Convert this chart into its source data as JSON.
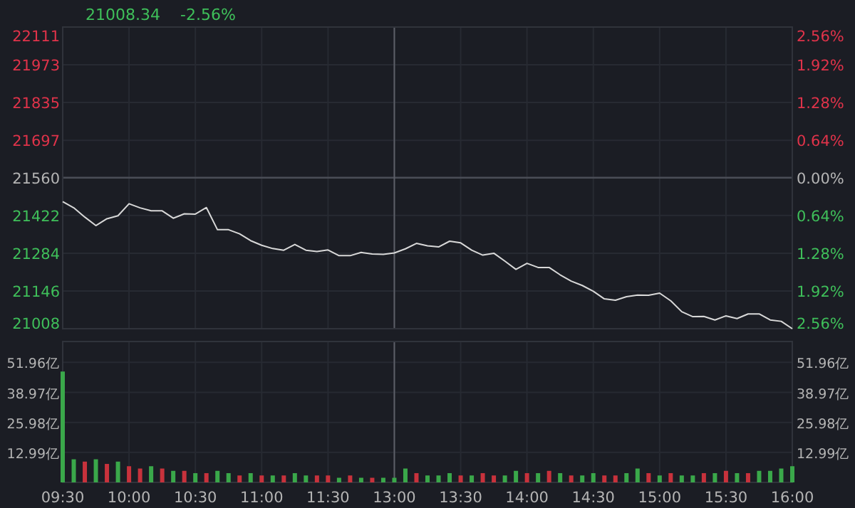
{
  "chart_data": [
    {
      "type": "line",
      "annotations": [
        "21008.34",
        "-2.56%"
      ],
      "color": "#d8d8d8",
      "categories": [
        "09:30",
        null,
        null,
        null,
        null,
        null,
        "10:00",
        null,
        null,
        null,
        null,
        null,
        "10:30",
        null,
        null,
        null,
        null,
        null,
        "11:00",
        null,
        null,
        null,
        null,
        null,
        "11:30",
        null,
        null,
        null,
        null,
        null,
        "13:00",
        null,
        null,
        null,
        null,
        null,
        "13:30",
        null,
        null,
        null,
        null,
        null,
        "14:00",
        null,
        null,
        null,
        null,
        null,
        "14:30",
        null,
        null,
        null,
        null,
        null,
        "15:00",
        null,
        null,
        null,
        null,
        null,
        "15:30",
        null,
        null,
        null,
        null,
        null,
        "16:00"
      ],
      "values": [
        21473,
        21450,
        21416,
        21385,
        21410,
        21421,
        21465,
        21450,
        21439,
        21439,
        21412,
        21428,
        21427,
        21451,
        21370,
        21370,
        21355,
        21330,
        21313,
        21301,
        21295,
        21316,
        21295,
        21290,
        21296,
        21275,
        21275,
        21287,
        21281,
        21280,
        21285,
        21300,
        21320,
        21311,
        21307,
        21328,
        21322,
        21295,
        21277,
        21284,
        21255,
        21225,
        21247,
        21232,
        21232,
        21205,
        21182,
        21166,
        21145,
        21117,
        21112,
        21125,
        21131,
        21130,
        21138,
        21110,
        21070,
        21052,
        21053,
        21040,
        21055,
        21045,
        21062,
        21062,
        21040,
        21035,
        21008
      ],
      "ylim": [
        21008,
        22111
      ],
      "yticks": [
        21008,
        21146,
        21284,
        21422,
        21560,
        21697,
        21835,
        21973,
        22111
      ],
      "y2lim": [
        -2.56,
        2.56
      ],
      "y2ticks": [
        {
          "value": -2.56,
          "label": "2.56%"
        },
        {
          "value": -1.92,
          "label": "1.92%"
        },
        {
          "value": -1.28,
          "label": "1.28%"
        },
        {
          "value": -0.64,
          "label": "0.64%"
        },
        {
          "value": 0,
          "label": "0.00%"
        },
        {
          "value": 0.64,
          "label": "0.64%"
        },
        {
          "value": 1.28,
          "label": "1.28%"
        },
        {
          "value": 1.92,
          "label": "1.92%"
        },
        {
          "value": 2.56,
          "label": "2.56%"
        }
      ],
      "ref_lines": [
        {
          "axis": "y",
          "value": 21560,
          "color": "#4a4d56"
        },
        {
          "axis": "x",
          "value": "13:00",
          "color": "#5c5f68"
        }
      ],
      "grid": true,
      "tick_labels": "y",
      "marker": "none",
      "line_style": "solid"
    },
    {
      "type": "bar",
      "categories": [
        "09:30",
        null,
        null,
        null,
        null,
        null,
        "10:00",
        null,
        null,
        null,
        null,
        null,
        "10:30",
        null,
        null,
        null,
        null,
        null,
        "11:00",
        null,
        null,
        null,
        null,
        null,
        "11:30",
        null,
        null,
        null,
        null,
        null,
        "13:00",
        null,
        null,
        null,
        null,
        null,
        "13:30",
        null,
        null,
        null,
        null,
        null,
        "14:00",
        null,
        null,
        null,
        null,
        null,
        "14:30",
        null,
        null,
        null,
        null,
        null,
        "15:00",
        null,
        null,
        null,
        null,
        null,
        "15:30",
        null,
        null,
        null,
        null,
        null,
        "16:00"
      ],
      "values": [
        48,
        10,
        9,
        10,
        8,
        9,
        7,
        6,
        7,
        6,
        5,
        5,
        4,
        4,
        5,
        4,
        3,
        4,
        3,
        3,
        3,
        4,
        3,
        3,
        3,
        2,
        3,
        2,
        2,
        2,
        2,
        6,
        4,
        3,
        3,
        4,
        3,
        3,
        4,
        3,
        3,
        5,
        4,
        4,
        5,
        4,
        3,
        3,
        4,
        3,
        3,
        4,
        6,
        4,
        3,
        4,
        3,
        3,
        4,
        4,
        5,
        4,
        4,
        5,
        5,
        6,
        7
      ],
      "colors": [
        "#3aa84a",
        "#3aa84a",
        "#c8323c",
        "#3aa84a",
        "#c8323c",
        "#3aa84a",
        "#c8323c",
        "#c8323c",
        "#3aa84a",
        "#c8323c",
        "#3aa84a",
        "#c8323c",
        "#3aa84a",
        "#c8323c",
        "#3aa84a",
        "#3aa84a",
        "#c8323c",
        "#3aa84a",
        "#c8323c",
        "#3aa84a",
        "#c8323c",
        "#3aa84a",
        "#3aa84a",
        "#c8323c",
        "#c8323c",
        "#3aa84a",
        "#c8323c",
        "#3aa84a",
        "#c8323c",
        "#3aa84a",
        "#3aa84a",
        "#3aa84a",
        "#c8323c",
        "#3aa84a",
        "#3aa84a",
        "#3aa84a",
        "#c8323c",
        "#3aa84a",
        "#c8323c",
        "#c8323c",
        "#3aa84a",
        "#3aa84a",
        "#c8323c",
        "#3aa84a",
        "#c8323c",
        "#3aa84a",
        "#c8323c",
        "#3aa84a",
        "#3aa84a",
        "#c8323c",
        "#c8323c",
        "#3aa84a",
        "#3aa84a",
        "#c8323c",
        "#3aa84a",
        "#c8323c",
        "#3aa84a",
        "#3aa84a",
        "#c8323c",
        "#3aa84a",
        "#c8323c",
        "#3aa84a",
        "#c8323c",
        "#3aa84a",
        "#3aa84a",
        "#3aa84a",
        "#3aa84a"
      ],
      "ylim": [
        0,
        61
      ],
      "yticks": [
        {
          "value": 12.99,
          "label": "12.99亿"
        },
        {
          "value": 25.98,
          "label": "25.98亿"
        },
        {
          "value": 38.97,
          "label": "38.97亿"
        },
        {
          "value": 51.96,
          "label": "51.96亿"
        }
      ],
      "y2lim": [
        0,
        61
      ],
      "y2ticks": [
        {
          "value": 12.99,
          "label": "12.99亿"
        },
        {
          "value": 25.98,
          "label": "25.98亿"
        },
        {
          "value": 38.97,
          "label": "38.97亿"
        },
        {
          "value": 51.96,
          "label": "51.96亿"
        }
      ],
      "ref_lines": [
        {
          "axis": "x",
          "value": "13:00",
          "color": "#5c5f68"
        }
      ],
      "grid": true
    }
  ]
}
